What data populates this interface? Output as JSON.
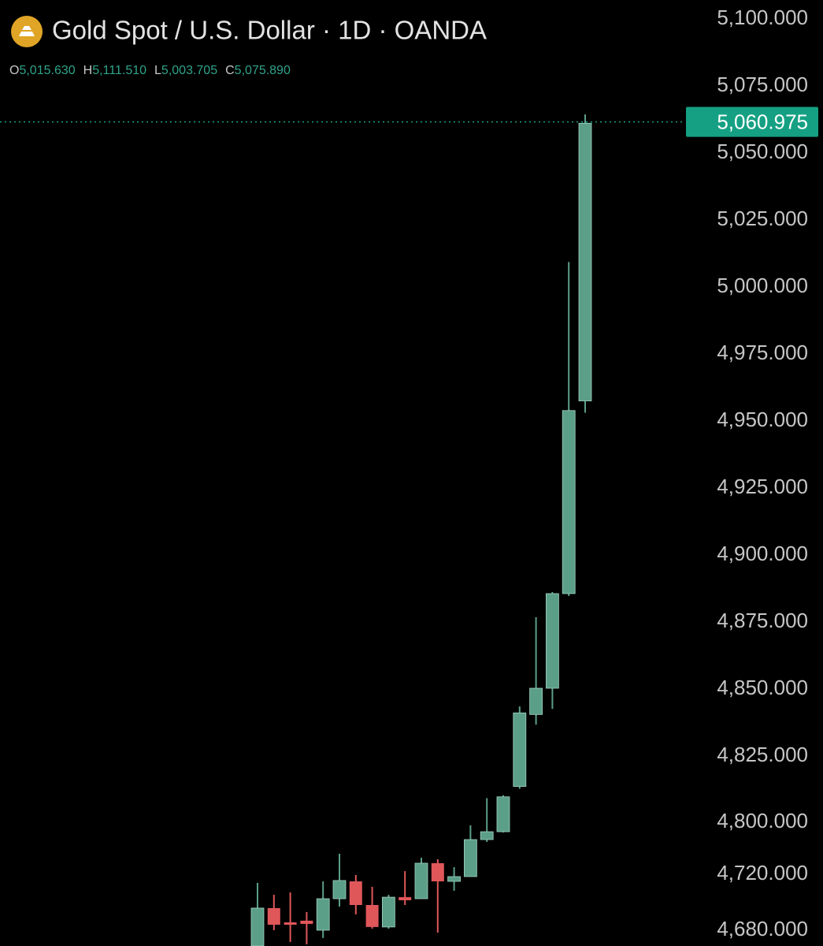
{
  "chart_data": {
    "type": "candlestick",
    "title": "Gold Spot / U.S. Dollar · 1D · OANDA",
    "ohlc_legend": [
      {
        "key": "O",
        "value": "5,015.630"
      },
      {
        "key": "H",
        "value": "5,111.510"
      },
      {
        "key": "L",
        "value": "5,003.705"
      },
      {
        "key": "C",
        "value": "5,075.890"
      }
    ],
    "up_color": "#5c9f89",
    "down_color": "#e0575a",
    "candles": [
      {
        "open": 4667.6,
        "high": 4712.7,
        "low": 4665,
        "close": 4694.7
      },
      {
        "open": 4694.7,
        "high": 4704.2,
        "low": 4678.9,
        "close": 4682.8
      },
      {
        "open": 4684.5,
        "high": 4705.9,
        "low": 4670.5,
        "close": 4682.8
      },
      {
        "open": 4685.7,
        "high": 4691.9,
        "low": 4668.8,
        "close": 4683.4
      },
      {
        "open": 4678.9,
        "high": 4713.8,
        "low": 4673.3,
        "close": 4701.4
      },
      {
        "open": 4701.4,
        "high": 4749.1,
        "low": 4695.8,
        "close": 4714.4
      },
      {
        "open": 4713.8,
        "high": 4718.3,
        "low": 4690.2,
        "close": 4696.9
      },
      {
        "open": 4696.9,
        "high": 4709.9,
        "low": 4680.0,
        "close": 4681.2
      },
      {
        "open": 4681.2,
        "high": 4704.2,
        "low": 4680.0,
        "close": 4702.5
      },
      {
        "open": 4702.5,
        "high": 4722.4,
        "low": 4696.9,
        "close": 4700.3
      },
      {
        "open": 4701.4,
        "high": 4743.0,
        "low": 4701.4,
        "close": 4734.6
      },
      {
        "open": 4734.6,
        "high": 4740.6,
        "low": 4677.2,
        "close": 4713.8
      },
      {
        "open": 4713.8,
        "high": 4728.5,
        "low": 4707.1,
        "close": 4717.2
      },
      {
        "open": 4717.2,
        "high": 4792.7,
        "low": 4717.2,
        "close": 4770.9
      },
      {
        "open": 4770.9,
        "high": 4808.5,
        "low": 4767.3,
        "close": 4783.0
      },
      {
        "open": 4783.0,
        "high": 4809.6,
        "low": 4781.8,
        "close": 4809.0
      },
      {
        "open": 4812.9,
        "high": 4842.9,
        "low": 4812.0,
        "close": 4840.5
      },
      {
        "open": 4839.9,
        "high": 4876.2,
        "low": 4836.1,
        "close": 4849.7
      },
      {
        "open": 4849.7,
        "high": 4885.6,
        "low": 4842.0,
        "close": 4885.0
      },
      {
        "open": 4885.0,
        "high": 5008.7,
        "low": 4884.1,
        "close": 4953.3
      },
      {
        "open": 4956.9,
        "high": 5063.8,
        "low": 4952.5,
        "close": 5060.5
      }
    ],
    "last_price": {
      "value": 5060.975,
      "label": "5,060.975"
    },
    "last_price_color": "#15a083",
    "ylim": [
      4667.6,
      5106.5
    ],
    "yticks": [
      {
        "value": 5100,
        "label": "5,100.000"
      },
      {
        "value": 5075,
        "label": "5,075.000"
      },
      {
        "value": 5050,
        "label": "5,050.000"
      },
      {
        "value": 5025,
        "label": "5,025.000"
      },
      {
        "value": 5000,
        "label": "5,000.000"
      },
      {
        "value": 4975,
        "label": "4,975.000"
      },
      {
        "value": 4950,
        "label": "4,950.000"
      },
      {
        "value": 4925,
        "label": "4,925.000"
      },
      {
        "value": 4900,
        "label": "4,900.000"
      },
      {
        "value": 4875,
        "label": "4,875.000"
      },
      {
        "value": 4850,
        "label": "4,850.000"
      },
      {
        "value": 4825,
        "label": "4,825.000"
      },
      {
        "value": 4800,
        "label": "4,800.000"
      },
      {
        "value": 4720,
        "label": "4,720.000"
      },
      {
        "value": 4680,
        "label": "4,680.000"
      }
    ]
  }
}
